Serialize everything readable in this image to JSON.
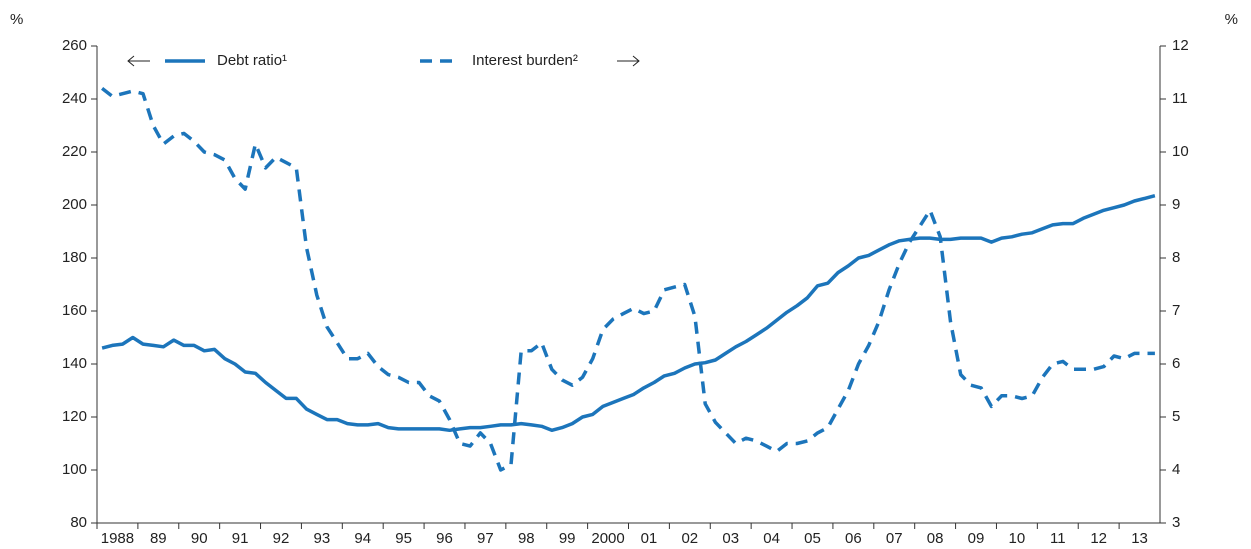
{
  "chart_data": {
    "type": "line",
    "y_label": "%",
    "y2_label": "%",
    "x": [
      1988.125,
      1988.375,
      1988.625,
      1988.875,
      1989.125,
      1989.375,
      1989.625,
      1989.875,
      1990.125,
      1990.375,
      1990.625,
      1990.875,
      1991.125,
      1991.375,
      1991.625,
      1991.875,
      1992.125,
      1992.375,
      1992.625,
      1992.875,
      1993.125,
      1993.375,
      1993.625,
      1993.875,
      1994.125,
      1994.375,
      1994.625,
      1994.875,
      1995.125,
      1995.375,
      1995.625,
      1995.875,
      1996.125,
      1996.375,
      1996.625,
      1996.875,
      1997.125,
      1997.375,
      1997.625,
      1997.875,
      1998.125,
      1998.375,
      1998.625,
      1998.875,
      1999.125,
      1999.375,
      1999.625,
      1999.875,
      2000.125,
      2000.375,
      2000.625,
      2000.875,
      2001.125,
      2001.375,
      2001.625,
      2001.875,
      2002.125,
      2002.375,
      2002.625,
      2002.875,
      2003.125,
      2003.375,
      2003.625,
      2003.875,
      2004.125,
      2004.375,
      2004.625,
      2004.875,
      2005.125,
      2005.375,
      2005.625,
      2005.875,
      2006.125,
      2006.375,
      2006.625,
      2006.875,
      2007.125,
      2007.375,
      2007.625,
      2007.875,
      2008.125,
      2008.375,
      2008.625,
      2008.875,
      2009.125,
      2009.375,
      2009.625,
      2009.875,
      2010.125,
      2010.375,
      2010.625,
      2010.875,
      2011.125,
      2011.375,
      2011.625,
      2011.875,
      2012.125,
      2012.375,
      2012.625,
      2012.875,
      2013.125,
      2013.375,
      2013.625,
      2013.875
    ],
    "series": [
      {
        "name": "Debt ratio¹",
        "color": "#1c75bb",
        "style": "solid",
        "axis": "y",
        "values": [
          146,
          147,
          147.5,
          150,
          147.5,
          147,
          146.5,
          149,
          147,
          147,
          145,
          145.5,
          142,
          140,
          137,
          136.5,
          133,
          130,
          127,
          127,
          123,
          121,
          119,
          119,
          117.5,
          117,
          117,
          117.5,
          116,
          115.5,
          115.5,
          115.5,
          115.5,
          115.5,
          115,
          115.5,
          116,
          116,
          116.5,
          117,
          117,
          117.5,
          117,
          116.5,
          115,
          116,
          117.5,
          120,
          121,
          124,
          125.5,
          127,
          128.5,
          131,
          133,
          135.5,
          136.5,
          138.5,
          140,
          140.5,
          141.5,
          144,
          146.5,
          148.5,
          151,
          153.5,
          156.5,
          159.5,
          162,
          165,
          169.5,
          170.5,
          174.5,
          177,
          180,
          181,
          183,
          185,
          186.5,
          187,
          187.5,
          187.5,
          187,
          187,
          187.5,
          187.5,
          187.5,
          186,
          187.5,
          188,
          189,
          189.5,
          191,
          192.5,
          193,
          193,
          195,
          196.5,
          198,
          199,
          200,
          201.5,
          202.5,
          203.5
        ]
      },
      {
        "name": "Interest burden²",
        "color": "#1c75bb",
        "style": "dashed",
        "axis": "y2",
        "values": [
          11.2,
          11.05,
          11.1,
          11.15,
          11.1,
          10.5,
          10.15,
          10.3,
          10.35,
          10.2,
          10.0,
          9.95,
          9.85,
          9.5,
          9.3,
          10.15,
          9.7,
          9.9,
          9.8,
          9.7,
          8.2,
          7.3,
          6.7,
          6.4,
          6.1,
          6.1,
          6.2,
          5.95,
          5.8,
          5.75,
          5.65,
          5.65,
          5.4,
          5.3,
          4.95,
          4.5,
          4.45,
          4.7,
          4.5,
          4.0,
          4.1,
          6.25,
          6.25,
          6.4,
          5.9,
          5.7,
          5.6,
          5.75,
          6.1,
          6.65,
          6.85,
          6.95,
          7.05,
          6.95,
          7.0,
          7.4,
          7.45,
          7.5,
          6.9,
          5.25,
          4.9,
          4.7,
          4.5,
          4.6,
          4.55,
          4.45,
          4.35,
          4.5,
          4.5,
          4.55,
          4.7,
          4.8,
          5.15,
          5.5,
          6.0,
          6.35,
          6.8,
          7.4,
          7.9,
          8.3,
          8.6,
          8.9,
          8.4,
          6.8,
          5.8,
          5.6,
          5.55,
          5.2,
          5.4,
          5.4,
          5.35,
          5.4,
          5.75,
          6.0,
          6.05,
          5.9,
          5.9,
          5.9,
          5.95,
          6.15,
          6.1,
          6.2,
          6.2,
          6.2
        ]
      }
    ],
    "xlim": [
      1988,
      2014
    ],
    "xticks": [
      {
        "value": 1988,
        "label": "1988"
      },
      {
        "value": 1989,
        "label": "89"
      },
      {
        "value": 1990,
        "label": "90"
      },
      {
        "value": 1991,
        "label": "91"
      },
      {
        "value": 1992,
        "label": "92"
      },
      {
        "value": 1993,
        "label": "93"
      },
      {
        "value": 1994,
        "label": "94"
      },
      {
        "value": 1995,
        "label": "95"
      },
      {
        "value": 1996,
        "label": "96"
      },
      {
        "value": 1997,
        "label": "97"
      },
      {
        "value": 1998,
        "label": "98"
      },
      {
        "value": 1999,
        "label": "99"
      },
      {
        "value": 2000,
        "label": "2000"
      },
      {
        "value": 2001,
        "label": "01"
      },
      {
        "value": 2002,
        "label": "02"
      },
      {
        "value": 2003,
        "label": "03"
      },
      {
        "value": 2004,
        "label": "04"
      },
      {
        "value": 2005,
        "label": "05"
      },
      {
        "value": 2006,
        "label": "06"
      },
      {
        "value": 2007,
        "label": "07"
      },
      {
        "value": 2008,
        "label": "08"
      },
      {
        "value": 2009,
        "label": "09"
      },
      {
        "value": 2010,
        "label": "10"
      },
      {
        "value": 2011,
        "label": "11"
      },
      {
        "value": 2012,
        "label": "12"
      },
      {
        "value": 2013,
        "label": "13"
      }
    ],
    "ylim": [
      80,
      260
    ],
    "yticks": [
      80,
      100,
      120,
      140,
      160,
      180,
      200,
      220,
      240,
      260
    ],
    "y2lim": [
      3,
      12
    ],
    "y2ticks": [
      3,
      4,
      5,
      6,
      7,
      8,
      9,
      10,
      11,
      12
    ],
    "grid": false
  }
}
